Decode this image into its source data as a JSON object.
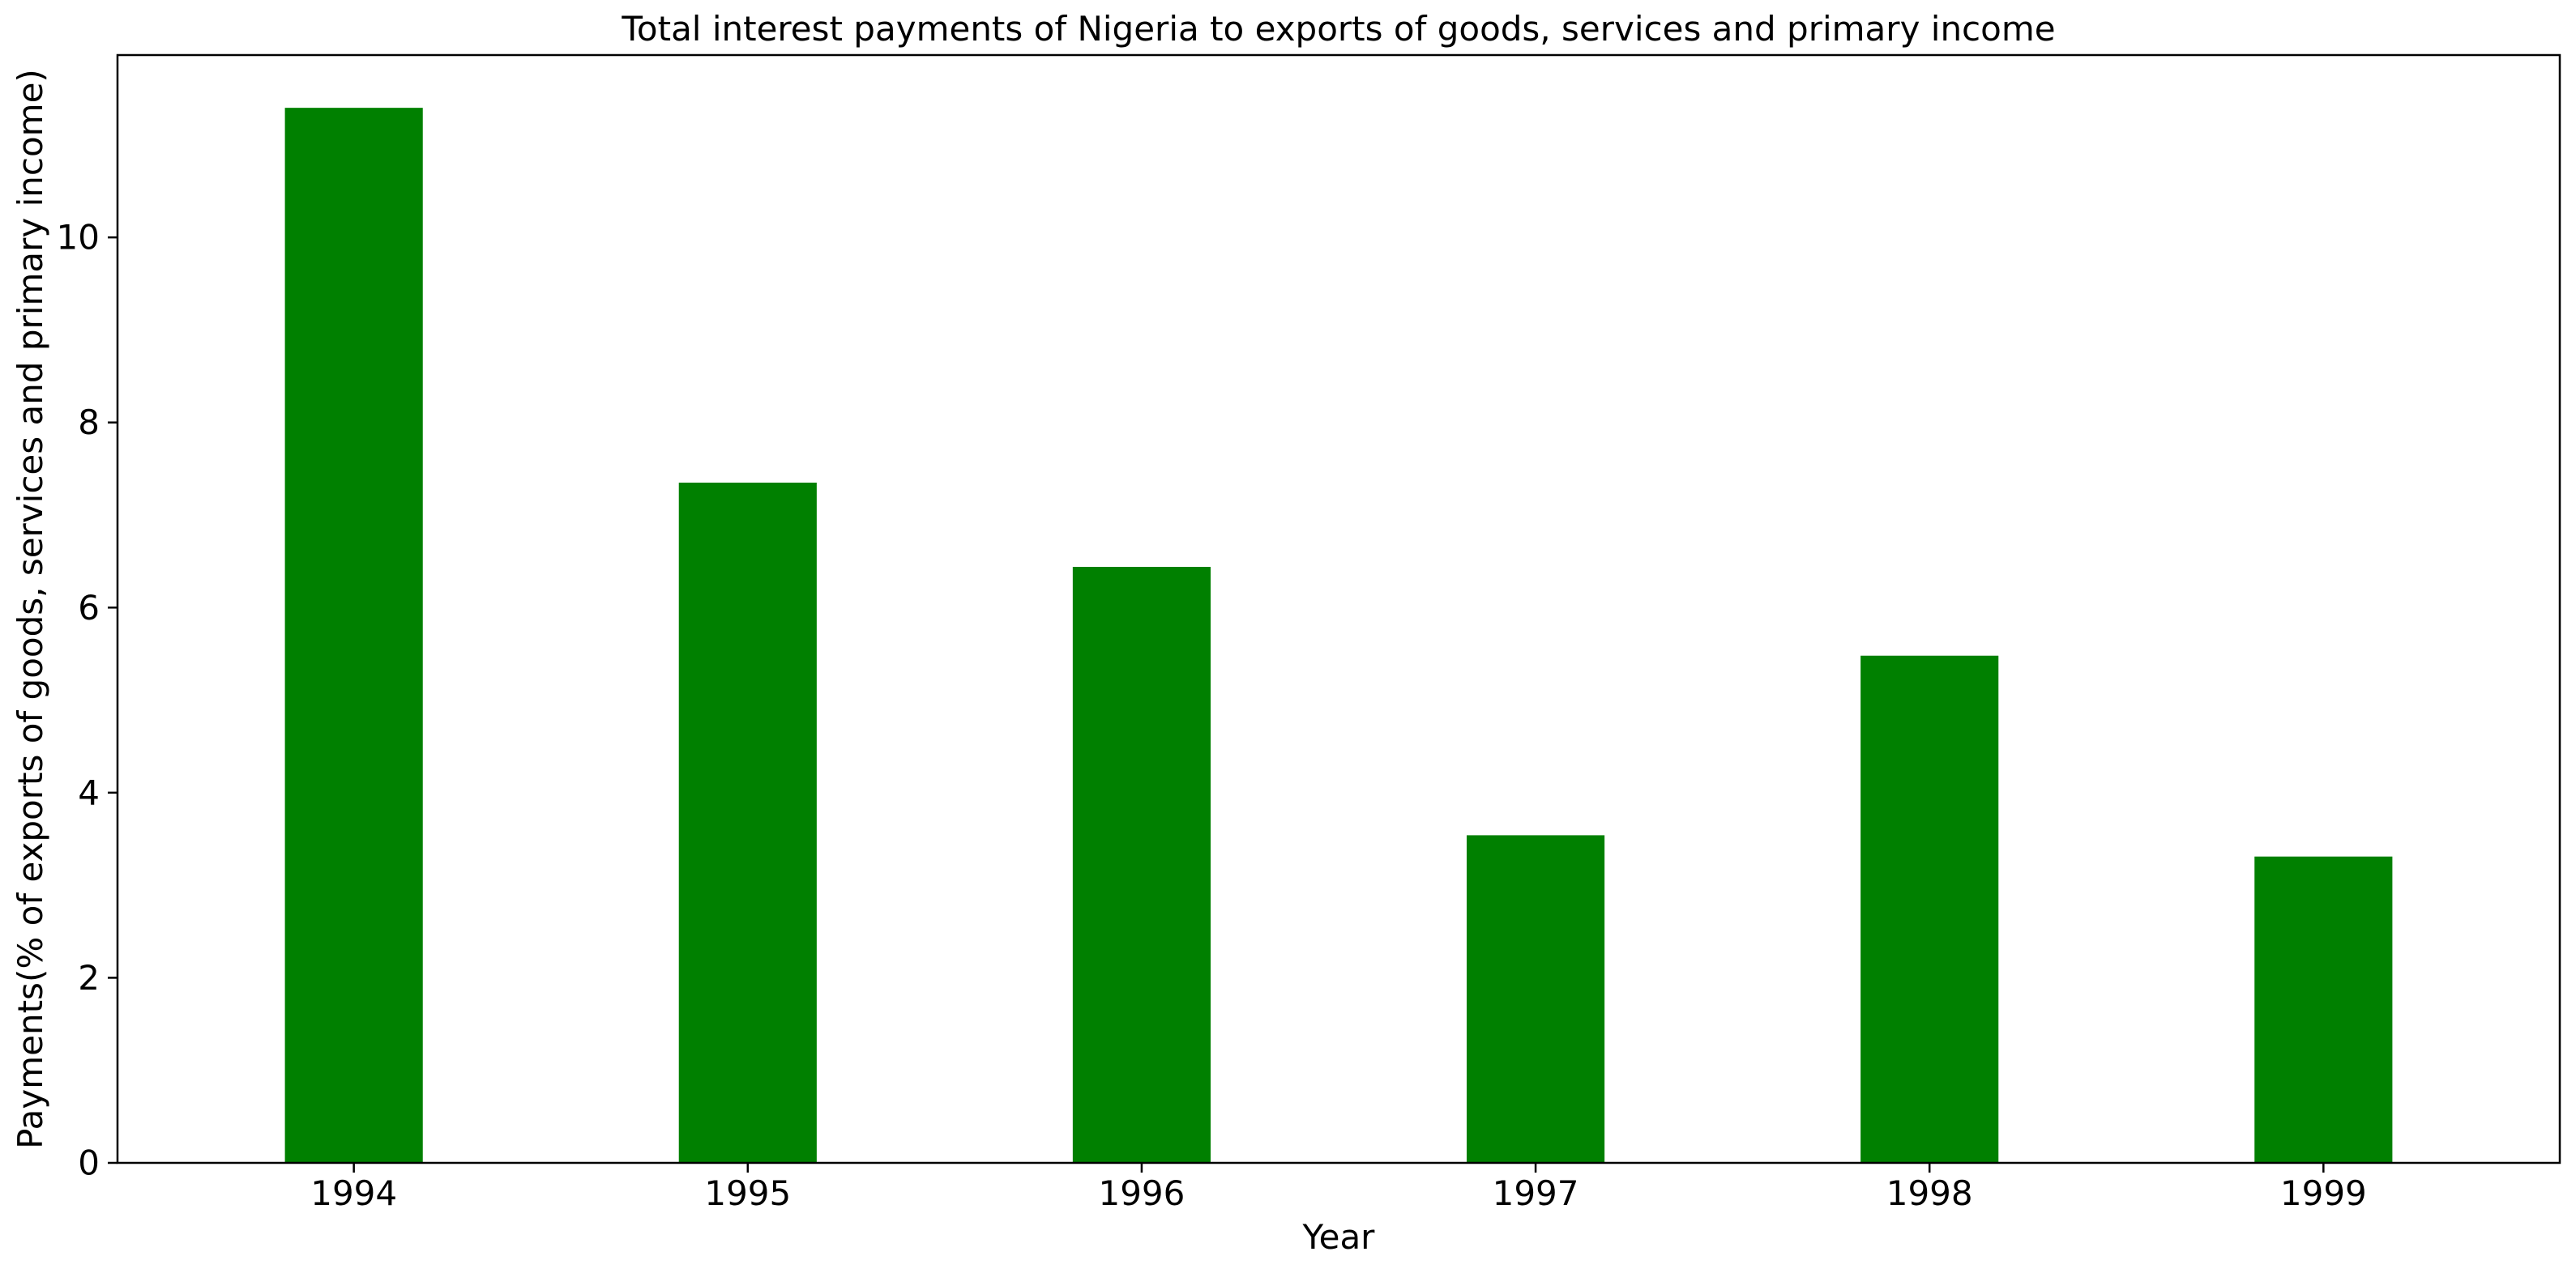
{
  "chart_data": {
    "type": "bar",
    "title": "Total interest payments of Nigeria to exports of goods, services and primary income",
    "xlabel": "Year",
    "ylabel": "Payments(% of exports of goods, services and primary income)",
    "categories": [
      "1994",
      "1995",
      "1996",
      "1997",
      "1998",
      "1999"
    ],
    "values": [
      11.4,
      7.35,
      6.44,
      3.54,
      5.48,
      3.31
    ],
    "ylim": [
      0,
      11.97
    ],
    "yticks": [
      0,
      2,
      4,
      6,
      8,
      10
    ],
    "grid": false,
    "legend": "none",
    "bar_color": "#008000"
  }
}
